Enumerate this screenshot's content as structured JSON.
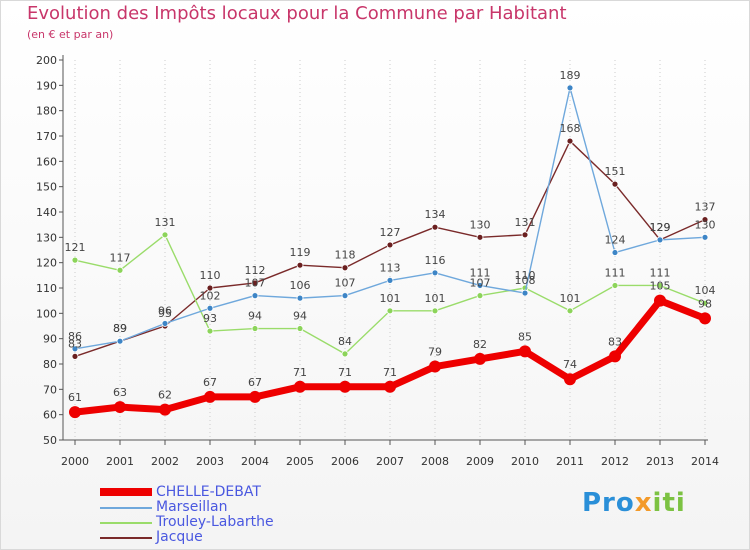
{
  "title": "Evolution des Impôts locaux pour la Commune par Habitant",
  "subtitle": "(en € et par an)",
  "brand": {
    "prefix": "Pro",
    "x": "x",
    "suffix": "iti"
  },
  "colors": {
    "title": "#c8366a",
    "legend_text": "#4a58e0",
    "axis": "#555555",
    "grid": "#cccccc",
    "label": "#444444"
  },
  "chart_data": {
    "type": "line",
    "title": "Evolution des Impôts locaux pour la Commune par Habitant",
    "subtitle": "(en € et par an)",
    "xlabel": "",
    "ylabel": "",
    "ylim": [
      50,
      200
    ],
    "ytick_step": 10,
    "x": [
      2000,
      2001,
      2002,
      2003,
      2004,
      2005,
      2006,
      2007,
      2008,
      2009,
      2010,
      2011,
      2012,
      2013,
      2014
    ],
    "series": [
      {
        "name": "CHELLE-DEBAT",
        "color": "#ee0000",
        "marker": "#ee0000",
        "values": [
          61,
          63,
          62,
          67,
          67,
          71,
          71,
          71,
          79,
          82,
          85,
          74,
          83,
          105,
          98
        ]
      },
      {
        "name": "Marseillan",
        "color": "#6fa8dc",
        "marker": "#3d85c6",
        "values": [
          86,
          89,
          96,
          102,
          107,
          106,
          107,
          113,
          116,
          111,
          108,
          189,
          124,
          129,
          130
        ]
      },
      {
        "name": "Trouley-Labarthe",
        "color": "#9adc6a",
        "marker": "#8cd45a",
        "values": [
          121,
          117,
          131,
          93,
          94,
          94,
          84,
          101,
          101,
          107,
          110,
          101,
          111,
          111,
          104
        ]
      },
      {
        "name": "Jacque",
        "color": "#7a2a2a",
        "marker": "#6a1f1f",
        "values": [
          83,
          89,
          95,
          110,
          112,
          119,
          118,
          127,
          134,
          130,
          131,
          168,
          151,
          129,
          137
        ]
      }
    ],
    "legend_position": "bottom-left",
    "grid": "vertical-dotted"
  }
}
